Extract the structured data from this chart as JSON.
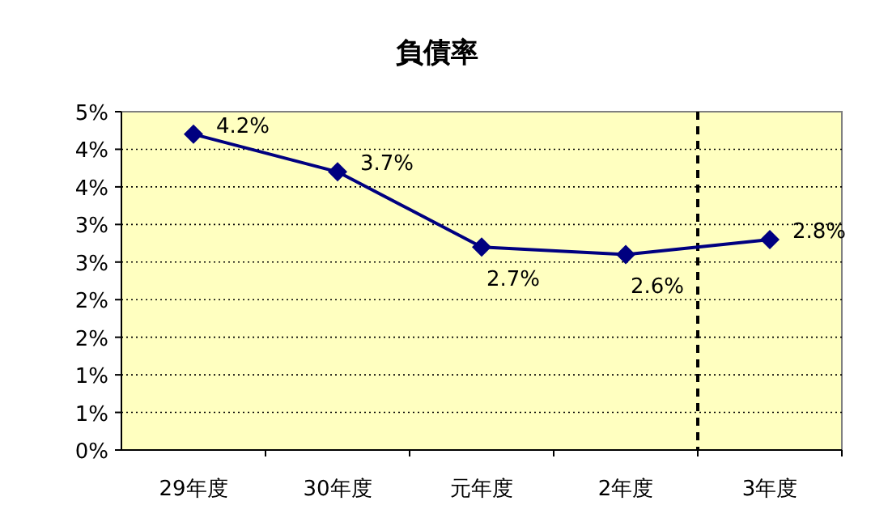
{
  "chart_data": {
    "type": "line",
    "title": "負債率",
    "categories": [
      "29年度",
      "30年度",
      "元年度",
      "2年度",
      "3年度"
    ],
    "series": [
      {
        "color": "#000080",
        "values": [
          4.2,
          3.7,
          2.7,
          2.6,
          2.8
        ],
        "value_labels": [
          "4.2%",
          "3.7%",
          "2.7%",
          "2.6%",
          "2.8%"
        ]
      }
    ],
    "ylim": [
      0,
      4.5
    ],
    "yticks": [
      {
        "value": 0,
        "label": "0%"
      },
      {
        "value": 0.5,
        "label": "1%"
      },
      {
        "value": 1,
        "label": "1%"
      },
      {
        "value": 1.5,
        "label": "2%"
      },
      {
        "value": 2,
        "label": "2%"
      },
      {
        "value": 2.5,
        "label": "3%"
      },
      {
        "value": 3,
        "label": "3%"
      },
      {
        "value": 3.5,
        "label": "4%"
      },
      {
        "value": 4,
        "label": "4%"
      },
      {
        "value": 4.5,
        "label": "5%"
      }
    ],
    "grid": "y",
    "marker": "diamond",
    "line_style": "solid"
  }
}
